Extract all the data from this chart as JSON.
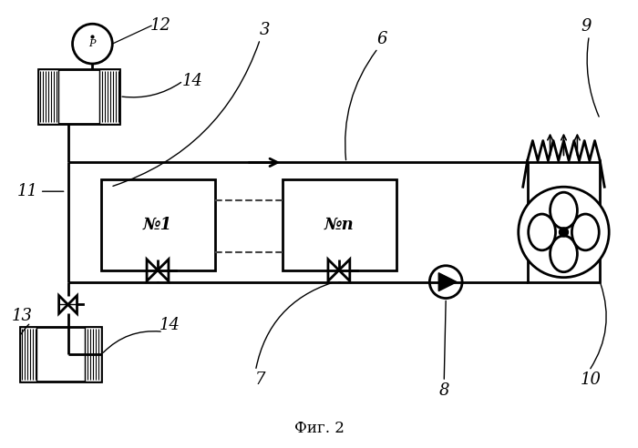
{
  "title": "Фиг. 2",
  "bg_color": "#ffffff",
  "line_color": "#000000",
  "lw": 2.0,
  "fig_width": 7.0,
  "fig_height": 4.92
}
